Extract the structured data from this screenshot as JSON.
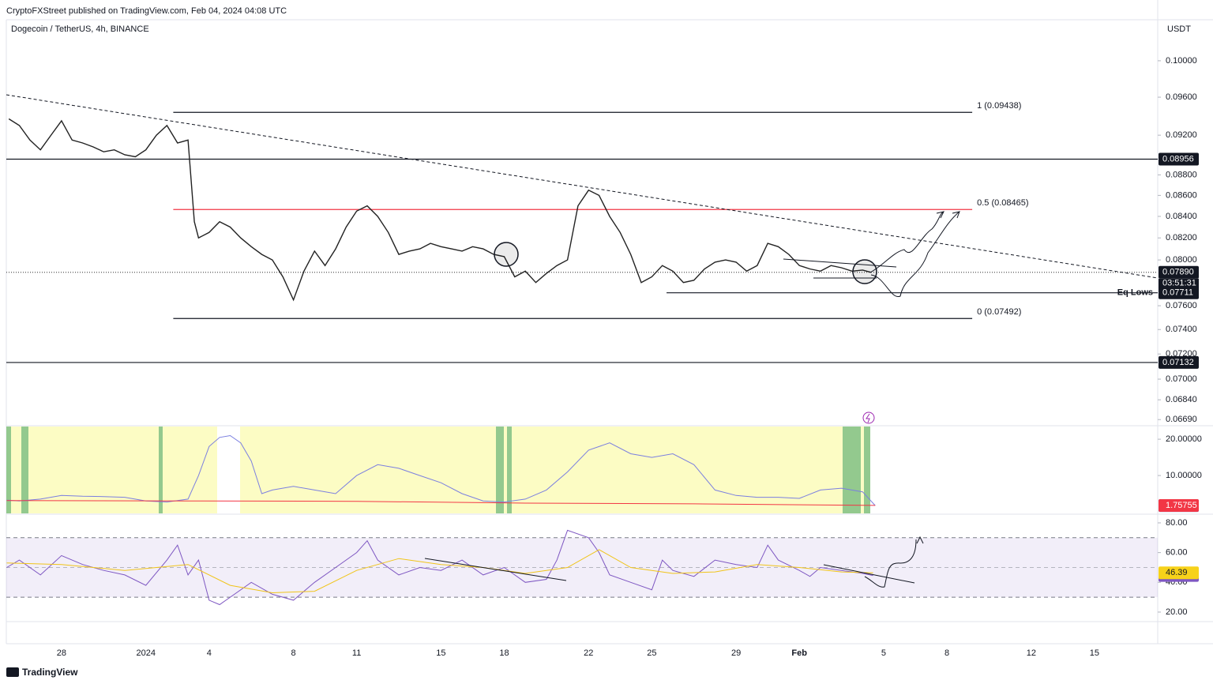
{
  "header": {
    "publisher": "CryptoFXStreet published on TradingView.com, Feb 04, 2024 04:08 UTC"
  },
  "footer": {
    "brand": "TradingView"
  },
  "chart_data": [
    {
      "type": "line",
      "title": "Dogecoin / TetherUS, 4h, BINANCE",
      "unit": "USDT",
      "log": true,
      "color": "#222222",
      "xlim": [
        -2.62,
        52.0
      ],
      "xticks": [
        {
          "value": 0,
          "label": "28"
        },
        {
          "value": 4,
          "label": "2024"
        },
        {
          "value": 7,
          "label": "4"
        },
        {
          "value": 11,
          "label": "8"
        },
        {
          "value": 14,
          "label": "11"
        },
        {
          "value": 18,
          "label": "15"
        },
        {
          "value": 21,
          "label": "18"
        },
        {
          "value": 25,
          "label": "22"
        },
        {
          "value": 28,
          "label": "25"
        },
        {
          "value": 32,
          "label": "29"
        },
        {
          "value": 35,
          "label": "Feb"
        },
        {
          "value": 39,
          "label": "5"
        },
        {
          "value": 42,
          "label": "8"
        },
        {
          "value": 46,
          "label": "12"
        },
        {
          "value": 49,
          "label": "15"
        }
      ],
      "ylim": [
        0.0665,
        0.1047
      ],
      "yticks": [
        {
          "value": 0.1,
          "label": "0.10000"
        },
        {
          "value": 0.096,
          "label": "0.09600"
        },
        {
          "value": 0.092,
          "label": "0.09200"
        },
        {
          "value": 0.088,
          "label": "0.08800"
        },
        {
          "value": 0.086,
          "label": "0.08600"
        },
        {
          "value": 0.084,
          "label": "0.08400"
        },
        {
          "value": 0.082,
          "label": "0.08200"
        },
        {
          "value": 0.08,
          "label": "0.08000"
        },
        {
          "value": 0.076,
          "label": "0.07600"
        },
        {
          "value": 0.074,
          "label": "0.07400"
        },
        {
          "value": 0.072,
          "label": "0.07200"
        },
        {
          "value": 0.07,
          "label": "0.07000"
        },
        {
          "value": 0.0684,
          "label": "0.06840"
        },
        {
          "value": 0.0669,
          "label": "0.06690"
        }
      ],
      "series": [
        {
          "color": "#222222",
          "x": [
            -2.5,
            -2,
            -1.5,
            -1,
            -0.5,
            0,
            0.5,
            1,
            1.5,
            2,
            2.5,
            3,
            3.5,
            4,
            4.5,
            5,
            5.5,
            6,
            6.3,
            6.5,
            7,
            7.5,
            8,
            8.5,
            9,
            9.5,
            10,
            10.5,
            11,
            11.5,
            12,
            12.5,
            13,
            13.5,
            14,
            14.5,
            15,
            15.5,
            16,
            16.5,
            17,
            17.5,
            18,
            18.5,
            19,
            19.5,
            20,
            20.5,
            21,
            21.5,
            22,
            22.5,
            23,
            23.5,
            24,
            24.5,
            25,
            25.5,
            26,
            26.5,
            27,
            27.5,
            28,
            28.5,
            29,
            29.5,
            30,
            30.5,
            31,
            31.5,
            32,
            32.5,
            33,
            33.5,
            34,
            34.5,
            35,
            35.5,
            36,
            36.5,
            37,
            37.5,
            38,
            38.4
          ],
          "values": [
            0.0937,
            0.093,
            0.0915,
            0.0905,
            0.092,
            0.0935,
            0.0915,
            0.0912,
            0.0908,
            0.0903,
            0.0905,
            0.09,
            0.0898,
            0.0905,
            0.092,
            0.093,
            0.0912,
            0.0915,
            0.0835,
            0.082,
            0.0825,
            0.0835,
            0.083,
            0.082,
            0.0812,
            0.0805,
            0.08,
            0.0785,
            0.0765,
            0.079,
            0.0808,
            0.0795,
            0.081,
            0.083,
            0.0845,
            0.085,
            0.084,
            0.0825,
            0.0805,
            0.0808,
            0.081,
            0.0815,
            0.0812,
            0.081,
            0.0808,
            0.0812,
            0.081,
            0.0805,
            0.0803,
            0.0785,
            0.079,
            0.078,
            0.0788,
            0.0795,
            0.08,
            0.085,
            0.0865,
            0.086,
            0.084,
            0.0825,
            0.0805,
            0.078,
            0.0785,
            0.0795,
            0.079,
            0.078,
            0.0782,
            0.0792,
            0.0798,
            0.08,
            0.0798,
            0.079,
            0.0795,
            0.0815,
            0.0812,
            0.0805,
            0.0795,
            0.0792,
            0.079,
            0.0795,
            0.0793,
            0.079,
            0.0791,
            0.0789
          ]
        }
      ],
      "levels": [
        {
          "value": 0.09438,
          "label": "1 (0.09438)",
          "x": [
            5.3,
            43.2
          ],
          "color": "#131722"
        },
        {
          "value": 0.08956,
          "tag": true,
          "color": "#131722"
        },
        {
          "value": 0.08465,
          "label": "0.5 (0.08465)",
          "x": [
            5.3,
            43.2
          ],
          "color": "#f23645"
        },
        {
          "value": 0.0789,
          "tag": true,
          "axis_label": "0.07890",
          "countdown": "03:51:31",
          "dotted": true,
          "color": "#555555"
        },
        {
          "value": 0.07711,
          "label": "Eq Lows",
          "tag": true,
          "x": [
            28.7,
            52.0
          ],
          "color": "#131722",
          "label_color": "#f23645"
        },
        {
          "value": 0.07492,
          "label": "0 (0.07492)",
          "x": [
            5.3,
            43.2
          ],
          "color": "#131722"
        },
        {
          "value": 0.07132,
          "tag": true,
          "color": "#131722"
        }
      ]
    },
    {
      "type": "line",
      "ylim": [
        -0.43,
        23.5
      ],
      "yticks": [
        {
          "value": 20,
          "label": "20.00000"
        },
        {
          "value": 10,
          "label": "10.00000"
        }
      ],
      "series": [
        {
          "color": "#7b7fe0",
          "tag_color": "#2962ff",
          "x": [
            -2.6,
            -2,
            -1,
            0,
            1,
            2,
            3,
            4,
            5,
            6,
            6.5,
            7,
            7.5,
            8,
            8.5,
            9,
            9.5,
            10,
            11,
            12,
            13,
            14,
            15,
            16,
            17,
            18,
            19,
            20,
            21,
            22,
            23,
            24,
            25,
            26,
            27,
            28,
            29,
            30,
            31,
            32,
            33,
            34,
            35,
            36,
            37,
            38,
            38.6
          ],
          "values": [
            3.2,
            3,
            3.5,
            4.5,
            4.3,
            4.2,
            4,
            3,
            2.7,
            3.5,
            10,
            18,
            20.5,
            21,
            19,
            14,
            5,
            6,
            7,
            6,
            5,
            10,
            13,
            12,
            10,
            8,
            5,
            3,
            2.7,
            3.5,
            6,
            11,
            17,
            19,
            16,
            15,
            16,
            13,
            6,
            4.5,
            4,
            4,
            3.7,
            6,
            6.5,
            5.5,
            1.72246
          ]
        },
        {
          "color": "#f23645",
          "tag_color": "#f23645",
          "x": [
            -2.6,
            6,
            14,
            22,
            30,
            38.6
          ],
          "values": [
            3.1,
            3,
            2.9,
            2.4,
            2.2,
            1.75755
          ]
        }
      ]
    },
    {
      "type": "line",
      "ylim": [
        13.6,
        85.3
      ],
      "bands": [
        30,
        70
      ],
      "mid": 50,
      "yticks": [
        {
          "value": 80,
          "label": "80.00"
        },
        {
          "value": 60,
          "label": "60.00"
        },
        {
          "value": 40,
          "label": "40.00"
        },
        {
          "value": 20,
          "label": "20.00"
        }
      ],
      "series": [
        {
          "color": "#7e57c2",
          "tag_color": "#7e57c2",
          "x": [
            -2.6,
            -2,
            -1,
            0,
            1,
            2,
            3,
            4,
            5,
            5.5,
            6,
            6.5,
            7,
            7.5,
            8,
            9,
            10,
            11,
            12,
            13,
            14,
            14.5,
            15,
            16,
            17,
            18,
            19,
            20,
            21,
            22,
            23,
            23.5,
            24,
            25,
            25.5,
            26,
            27,
            28,
            28.5,
            29,
            30,
            31,
            32,
            33,
            33.5,
            34,
            35,
            35.5,
            36,
            37,
            38,
            38.5
          ],
          "values": [
            50,
            55,
            45,
            58,
            52,
            48,
            45,
            38,
            55,
            65,
            45,
            55,
            28,
            25,
            30,
            40,
            32,
            28,
            40,
            50,
            60,
            68,
            55,
            45,
            50,
            48,
            55,
            45,
            50,
            40,
            42,
            55,
            75,
            70,
            60,
            45,
            40,
            35,
            55,
            48,
            44,
            55,
            52,
            50,
            65,
            55,
            48,
            44,
            50,
            48,
            46,
            44.62
          ]
        },
        {
          "color": "#f0c419",
          "tag_color": "#f7d21a",
          "x": [
            -2.6,
            0,
            3,
            6,
            8,
            10,
            12,
            14,
            16,
            18,
            20,
            22,
            24,
            25.5,
            27,
            29,
            31,
            33,
            35,
            37,
            38.5
          ],
          "values": [
            53,
            52,
            48,
            52,
            38,
            33,
            34,
            48,
            56,
            52,
            50,
            46,
            50,
            62,
            50,
            46,
            47,
            52,
            50,
            47,
            46.39
          ]
        }
      ]
    }
  ]
}
